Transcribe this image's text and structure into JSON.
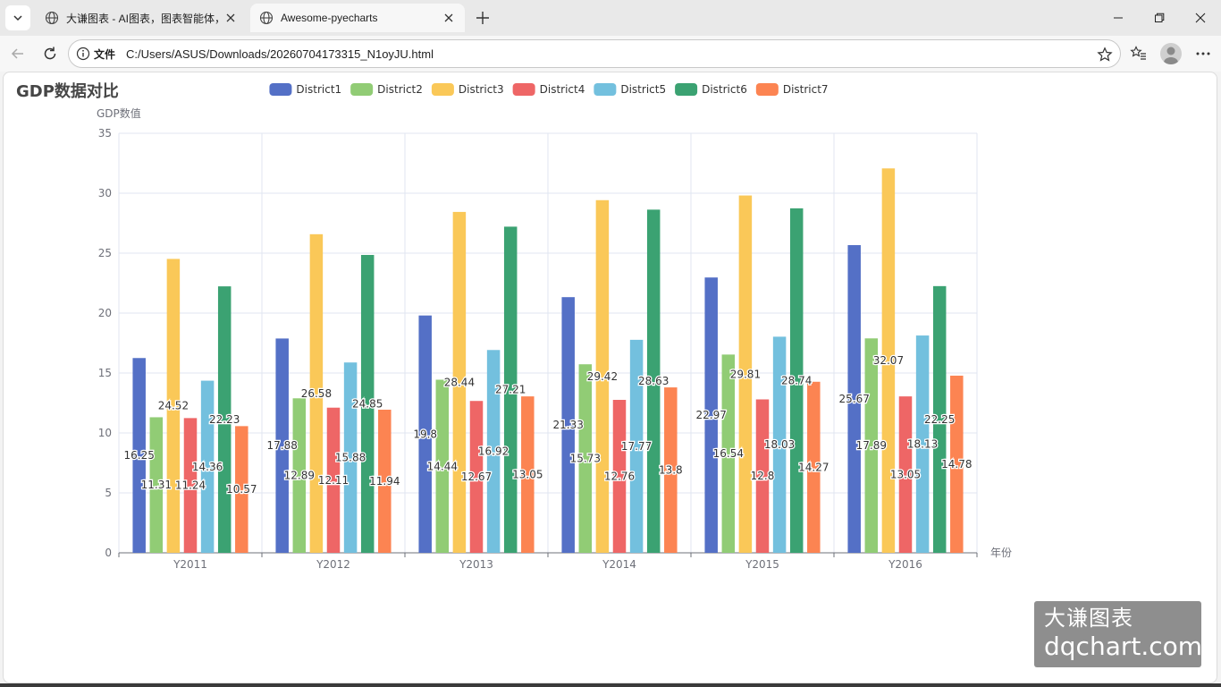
{
  "browser": {
    "tabs": [
      {
        "title": "大谦图表 - AI图表，图表智能体，>",
        "active": false
      },
      {
        "title": "Awesome-pyecharts",
        "active": true
      }
    ],
    "address": {
      "scheme_label": "文件",
      "url": "C:/Users/ASUS/Downloads/20260704173315_N1oyJU.html"
    }
  },
  "watermark": {
    "line1": "大谦图表",
    "line2": "dqchart.com"
  },
  "chart_data": {
    "type": "bar",
    "title": "GDP数据对比",
    "xlabel": "年份",
    "ylabel": "GDP数值",
    "categories": [
      "Y2011",
      "Y2012",
      "Y2013",
      "Y2014",
      "Y2015",
      "Y2016"
    ],
    "ylim": [
      0,
      35
    ],
    "yticks": [
      0,
      5,
      10,
      15,
      20,
      25,
      30,
      35
    ],
    "legend_position": "top",
    "grid": true,
    "series": [
      {
        "name": "District1",
        "color": "#5470c6",
        "values": [
          16.25,
          17.88,
          19.8,
          21.33,
          22.97,
          25.67
        ]
      },
      {
        "name": "District2",
        "color": "#91cc75",
        "values": [
          11.31,
          12.89,
          14.44,
          15.73,
          16.54,
          17.89
        ]
      },
      {
        "name": "District3",
        "color": "#fac858",
        "values": [
          24.52,
          26.58,
          28.44,
          29.42,
          29.81,
          32.07
        ]
      },
      {
        "name": "District4",
        "color": "#ee6666",
        "values": [
          11.24,
          12.11,
          12.67,
          12.76,
          12.8,
          13.05
        ]
      },
      {
        "name": "District5",
        "color": "#73c0de",
        "values": [
          14.36,
          15.88,
          16.92,
          17.77,
          18.03,
          18.13
        ]
      },
      {
        "name": "District6",
        "color": "#3ba272",
        "values": [
          22.23,
          24.85,
          27.21,
          28.63,
          28.74,
          22.25
        ]
      },
      {
        "name": "District7",
        "color": "#fc8452",
        "values": [
          10.57,
          11.94,
          13.05,
          13.8,
          14.27,
          14.78
        ]
      }
    ]
  }
}
